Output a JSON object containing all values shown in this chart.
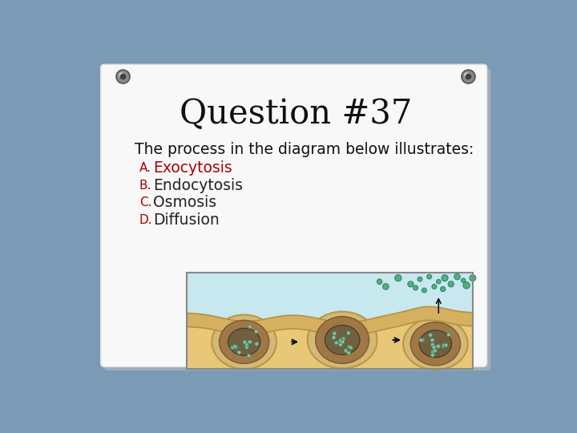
{
  "title": "Question #37",
  "title_fontsize": 30,
  "title_font": "serif",
  "body_text": "The process in the diagram below illustrates:",
  "body_fontsize": 13.5,
  "options": [
    {
      "label": "A.",
      "text": "Exocytosis",
      "label_color": "#aa0000",
      "text_color": "#aa0000"
    },
    {
      "label": "B.",
      "text": "Endocytosis",
      "label_color": "#aa0000",
      "text_color": "#222222"
    },
    {
      "label": "C.",
      "text": "Osmosis",
      "label_color": "#aa0000",
      "text_color": "#222222"
    },
    {
      "label": "D.",
      "text": "Diffusion",
      "label_color": "#aa0000",
      "text_color": "#222222"
    }
  ],
  "option_fontsize": 13.5,
  "option_label_fontsize": 11,
  "background_outer": "#7a9ab5",
  "background_paper": "#f8f8f8",
  "paper_shadow": "#999999",
  "diagram_border": "#888888",
  "diagram_bg_top": "#c8e8f0",
  "diagram_bg_bottom": "#e8c878",
  "membrane_color": "#d4b060",
  "membrane_edge": "#b89040",
  "cell_outer_color": "#d4b878",
  "cell_outer_edge": "#b89840",
  "cell_body_color": "#a07848",
  "cell_body_edge": "#806030",
  "nucleus_color": "#706040",
  "nucleus_edge": "#504020",
  "vesicle_fill": "#88c0a0",
  "vesicle_edge": "#4a8060",
  "particle_fill": "#50b080",
  "particle_edge": "#308060",
  "arrow_color": "#111111",
  "pin_outer": "#888888",
  "pin_inner": "#444444",
  "pin_highlight": "#cccccc"
}
